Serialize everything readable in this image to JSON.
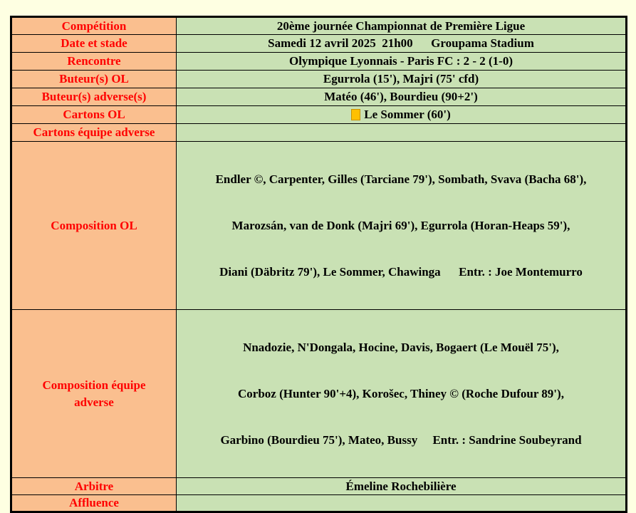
{
  "colors": {
    "page_bg": "#FEFFE2",
    "label_bg": "#FABF8F",
    "value_bg": "#C9E1B4",
    "label_text": "#FF0000",
    "value_text": "#000000",
    "border": "#000000",
    "yellow_card": "#FFC000"
  },
  "table": {
    "rows": [
      {
        "label": "Compétition",
        "value": "20ème journée Championnat de Première Ligue"
      },
      {
        "label": "Date et stade",
        "value": "Samedi 12 avril 2025  21h00      Groupama Stadium"
      },
      {
        "label": "Rencontre",
        "value": "Olympique Lyonnais - Paris FC : 2 - 2 (1-0)"
      },
      {
        "label": "Buteur(s) OL",
        "value": "Egurrola (15'), Majri (75' cfd)"
      },
      {
        "label": "Buteur(s) adverse(s)",
        "value": "Matéo (46'), Bourdieu (90+2')"
      },
      {
        "label": "Cartons OL",
        "card_icon": "yellow-card",
        "value": "Le Sommer (60')"
      },
      {
        "label": "Cartons équipe adverse",
        "value": ""
      },
      {
        "label": "Composition OL",
        "lines": [
          "Endler ©, Carpenter, Gilles (Tarciane 79'), Sombath, Svava (Bacha 68'),",
          "Marozsán, van de Donk (Majri 69'), Egurrola (Horan-Heaps 59'),",
          "Diani (Däbritz 79'), Le Sommer, Chawinga      Entr. : Joe Montemurro"
        ]
      },
      {
        "label_lines": [
          "Composition équipe",
          "adverse"
        ],
        "lines": [
          "Nnadozie, N'Dongala, Hocine, Davis, Bogaert (Le Mouël 75'),",
          "Corboz (Hunter 90'+4), Korošec, Thiney © (Roche Dufour 89'),",
          "Garbino (Bourdieu 75'), Mateo, Bussy     Entr. : Sandrine Soubeyrand"
        ]
      },
      {
        "label": "Arbitre",
        "value": "Émeline Rochebilière"
      },
      {
        "label": "Affluence",
        "value": ""
      }
    ]
  }
}
